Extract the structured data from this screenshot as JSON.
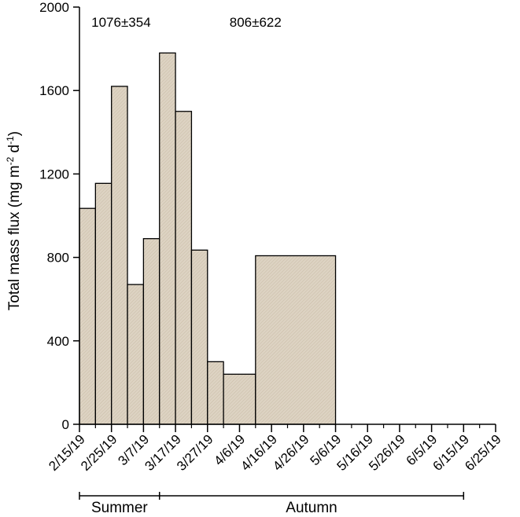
{
  "chart_data": {
    "type": "bar",
    "title": "",
    "ylabel_parts": {
      "main": "Total mass flux (mg m",
      "sup1": "-2",
      "mid": " d",
      "sup2": "-1",
      "end": ")"
    },
    "ylim": [
      0,
      2000
    ],
    "yticks": [
      0,
      400,
      800,
      1200,
      1600,
      2000
    ],
    "x_tick_labels": [
      "2/15/19",
      "2/25/19",
      "3/7/19",
      "3/17/19",
      "3/27/19",
      "4/6/19",
      "4/16/19",
      "4/26/19",
      "5/6/19",
      "5/16/19",
      "5/26/19",
      "6/5/19",
      "6/15/19",
      "6/25/19"
    ],
    "x_start": "2019-02-15",
    "x_end": "2019-06-25",
    "bars": [
      {
        "start": "2019-02-15",
        "end": "2019-02-20",
        "value": 1035
      },
      {
        "start": "2019-02-20",
        "end": "2019-02-25",
        "value": 1155
      },
      {
        "start": "2019-02-25",
        "end": "2019-03-02",
        "value": 1620
      },
      {
        "start": "2019-03-02",
        "end": "2019-03-07",
        "value": 670
      },
      {
        "start": "2019-03-07",
        "end": "2019-03-12",
        "value": 890
      },
      {
        "start": "2019-03-12",
        "end": "2019-03-17",
        "value": 1780
      },
      {
        "start": "2019-03-17",
        "end": "2019-03-22",
        "value": 1500
      },
      {
        "start": "2019-03-22",
        "end": "2019-03-27",
        "value": 835
      },
      {
        "start": "2019-03-27",
        "end": "2019-04-01",
        "value": 300
      },
      {
        "start": "2019-04-01",
        "end": "2019-04-11",
        "value": 240
      },
      {
        "start": "2019-04-11",
        "end": "2019-05-06",
        "value": 808
      }
    ],
    "bar_color": "#ddd3c3",
    "annotations": [
      {
        "text": "1076±354",
        "at": "2019-02-28"
      },
      {
        "text": "806±622",
        "at": "2019-04-11"
      }
    ],
    "seasons": [
      {
        "label": "Summer",
        "start": "2019-02-15",
        "end": "2019-03-12"
      },
      {
        "label": "Autumn",
        "start": "2019-03-12",
        "end": "2019-06-15"
      }
    ]
  }
}
